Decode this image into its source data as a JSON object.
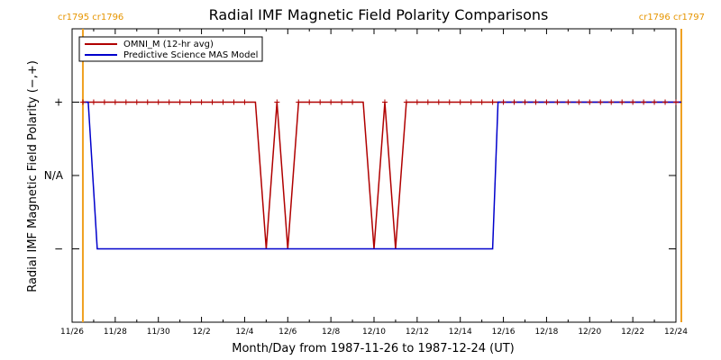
{
  "chart_data": {
    "type": "line",
    "title": "Radial IMF Magnetic Field Polarity Comparisons",
    "xlabel": "Month/Day from 1987-11-26 to 1987-12-24 (UT)",
    "ylabel": "Radial IMF Magnetic Field Polarity (−,+)",
    "xlim": [
      "1987-11-26",
      "1987-12-24"
    ],
    "ylim": [
      -2,
      2
    ],
    "xtick_labels": [
      "11/26",
      "11/28",
      "11/30",
      "12/2",
      "12/4",
      "12/6",
      "12/8",
      "12/10",
      "12/12",
      "12/14",
      "12/16",
      "12/18",
      "12/20",
      "12/22",
      "12/24"
    ],
    "ytick_labels": [
      {
        "value": 1,
        "label": "+"
      },
      {
        "value": 0,
        "label": "N/A"
      },
      {
        "value": -1,
        "label": "−"
      }
    ],
    "carrington_markers": [
      {
        "date": "1987-11-26 12:00",
        "label": "cr1795 cr1796",
        "position": "left"
      },
      {
        "date": "1987-12-24 06:00",
        "label": "cr1796 cr1797",
        "position": "right"
      }
    ],
    "legend": {
      "placement": "top-left",
      "entries": [
        {
          "name": "OMNI_M (12-hr avg)",
          "color": "#b00000"
        },
        {
          "name": "Predictive Science MAS Model",
          "color": "#0000cc"
        }
      ]
    },
    "series": [
      {
        "name": "OMNI_M (12-hr avg)",
        "color": "#b00000",
        "marker": "+",
        "points": [
          [
            "1987-11-26 12:00",
            1
          ],
          [
            "1987-11-27 00:00",
            1
          ],
          [
            "1987-11-27 12:00",
            1
          ],
          [
            "1987-11-28 00:00",
            1
          ],
          [
            "1987-11-28 12:00",
            1
          ],
          [
            "1987-11-29 00:00",
            1
          ],
          [
            "1987-11-29 12:00",
            1
          ],
          [
            "1987-11-30 00:00",
            1
          ],
          [
            "1987-11-30 12:00",
            1
          ],
          [
            "1987-12-01 00:00",
            1
          ],
          [
            "1987-12-01 12:00",
            1
          ],
          [
            "1987-12-02 00:00",
            1
          ],
          [
            "1987-12-02 12:00",
            1
          ],
          [
            "1987-12-03 00:00",
            1
          ],
          [
            "1987-12-03 12:00",
            1
          ],
          [
            "1987-12-04 00:00",
            1
          ],
          [
            "1987-12-04 12:00",
            1
          ],
          [
            "1987-12-05 00:00",
            -1
          ],
          [
            "1987-12-05 12:00",
            1
          ],
          [
            "1987-12-06 00:00",
            -1
          ],
          [
            "1987-12-06 12:00",
            1
          ],
          [
            "1987-12-07 00:00",
            1
          ],
          [
            "1987-12-07 12:00",
            1
          ],
          [
            "1987-12-08 00:00",
            1
          ],
          [
            "1987-12-08 12:00",
            1
          ],
          [
            "1987-12-09 00:00",
            1
          ],
          [
            "1987-12-09 12:00",
            1
          ],
          [
            "1987-12-10 00:00",
            -1
          ],
          [
            "1987-12-10 12:00",
            1
          ],
          [
            "1987-12-11 00:00",
            -1
          ],
          [
            "1987-12-11 12:00",
            1
          ],
          [
            "1987-12-12 00:00",
            1
          ],
          [
            "1987-12-12 12:00",
            1
          ],
          [
            "1987-12-13 00:00",
            1
          ],
          [
            "1987-12-13 12:00",
            1
          ],
          [
            "1987-12-14 00:00",
            1
          ],
          [
            "1987-12-14 12:00",
            1
          ],
          [
            "1987-12-15 00:00",
            1
          ],
          [
            "1987-12-15 12:00",
            1
          ],
          [
            "1987-12-16 00:00",
            1
          ],
          [
            "1987-12-16 12:00",
            1
          ],
          [
            "1987-12-17 00:00",
            1
          ],
          [
            "1987-12-17 12:00",
            1
          ],
          [
            "1987-12-18 00:00",
            1
          ],
          [
            "1987-12-18 12:00",
            1
          ],
          [
            "1987-12-19 00:00",
            1
          ],
          [
            "1987-12-19 12:00",
            1
          ],
          [
            "1987-12-20 00:00",
            1
          ],
          [
            "1987-12-20 12:00",
            1
          ],
          [
            "1987-12-21 00:00",
            1
          ],
          [
            "1987-12-21 12:00",
            1
          ],
          [
            "1987-12-22 00:00",
            1
          ],
          [
            "1987-12-22 12:00",
            1
          ],
          [
            "1987-12-23 00:00",
            1
          ],
          [
            "1987-12-23 12:00",
            1
          ],
          [
            "1987-12-24 00:00",
            1
          ],
          [
            "1987-12-24 06:00",
            1
          ]
        ],
        "markers": [
          "1987-11-26 12:00",
          "1987-11-27 00:00",
          "1987-11-27 12:00",
          "1987-11-28 00:00",
          "1987-11-28 12:00",
          "1987-11-29 00:00",
          "1987-11-29 12:00",
          "1987-11-30 00:00",
          "1987-11-30 12:00",
          "1987-12-01 00:00",
          "1987-12-01 12:00",
          "1987-12-02 00:00",
          "1987-12-02 12:00",
          "1987-12-03 00:00",
          "1987-12-03 12:00",
          "1987-12-04 00:00",
          "1987-12-05 12:00",
          "1987-12-06 12:00",
          "1987-12-07 00:00",
          "1987-12-07 12:00",
          "1987-12-08 00:00",
          "1987-12-08 12:00",
          "1987-12-09 00:00",
          "1987-12-10 12:00",
          "1987-12-11 12:00",
          "1987-12-12 00:00",
          "1987-12-12 12:00",
          "1987-12-13 00:00",
          "1987-12-13 12:00",
          "1987-12-14 00:00",
          "1987-12-14 12:00",
          "1987-12-15 00:00",
          "1987-12-15 12:00",
          "1987-12-16 00:00",
          "1987-12-16 12:00",
          "1987-12-17 00:00",
          "1987-12-17 12:00",
          "1987-12-18 00:00",
          "1987-12-18 12:00",
          "1987-12-19 00:00",
          "1987-12-19 12:00",
          "1987-12-20 00:00",
          "1987-12-20 12:00",
          "1987-12-21 00:00",
          "1987-12-21 12:00",
          "1987-12-22 00:00",
          "1987-12-22 12:00",
          "1987-12-23 00:00",
          "1987-12-23 12:00",
          "1987-12-24 00:00"
        ]
      },
      {
        "name": "Predictive Science MAS Model",
        "color": "#0000cc",
        "marker": "none",
        "points": [
          [
            "1987-11-26 12:00",
            1
          ],
          [
            "1987-11-26 18:00",
            1
          ],
          [
            "1987-11-27 04:00",
            -1
          ],
          [
            "1987-12-15 12:00",
            -1
          ],
          [
            "1987-12-15 18:00",
            1
          ],
          [
            "1987-12-24 06:00",
            1
          ]
        ]
      }
    ]
  }
}
